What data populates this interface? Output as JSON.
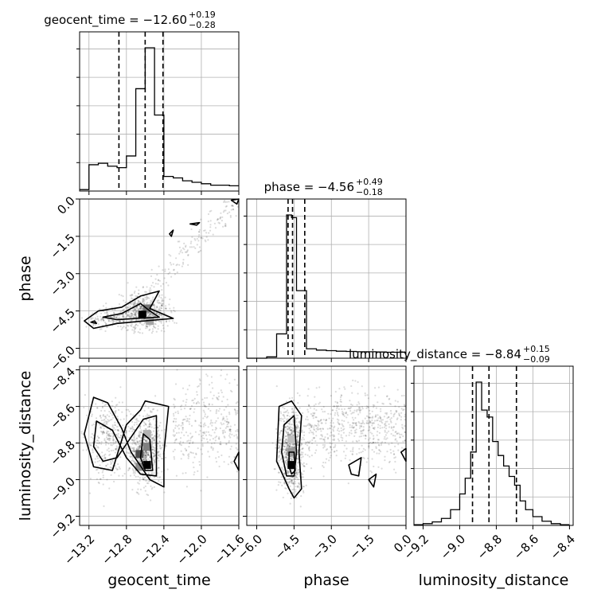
{
  "chart_data": {
    "type": "corner",
    "parameters": [
      "geocent_time",
      "phase",
      "luminosity_distance"
    ],
    "ranges": {
      "geocent_time": [
        -13.3,
        -11.6
      ],
      "phase": [
        -6.4,
        0.0
      ],
      "luminosity_distance": [
        -9.25,
        -8.38
      ]
    },
    "ticks": {
      "geocent_time": [
        -13.2,
        -12.8,
        -12.4,
        -12.0,
        -11.6
      ],
      "phase": [
        -6.0,
        -4.5,
        -3.0,
        -1.5,
        0.0
      ],
      "luminosity_distance": [
        -9.2,
        -9.0,
        -8.8,
        -8.6,
        -8.4
      ]
    },
    "tick_labels": {
      "geocent_time": [
        "−13.2",
        "−12.8",
        "−12.4",
        "−12.0",
        "−11.6"
      ],
      "phase": [
        "−6.0",
        "−4.5",
        "−3.0",
        "−1.5",
        "0.0"
      ],
      "luminosity_distance": [
        "−9.2",
        "−9.0",
        "−8.8",
        "−8.6",
        "−8.4"
      ]
    },
    "titles": [
      {
        "param": "geocent_time",
        "text": "geocent_time = −12.60",
        "plus": "+0.19",
        "minus": "−0.28"
      },
      {
        "param": "phase",
        "text": "phase = −4.56",
        "plus": "+0.49",
        "minus": "−0.18"
      },
      {
        "param": "luminosity_distance",
        "text": "luminosity_distance = −8.84",
        "plus": "+0.15",
        "minus": "−0.09"
      }
    ],
    "quantiles": {
      "geocent_time": [
        -12.88,
        -12.6,
        -12.41
      ],
      "phase": [
        -4.74,
        -4.56,
        -4.07
      ],
      "luminosity_distance": [
        -8.93,
        -8.84,
        -8.69
      ]
    },
    "histograms": {
      "geocent_time": {
        "edges": [
          -13.3,
          -13.2,
          -13.1,
          -13.0,
          -12.9,
          -12.8,
          -12.7,
          -12.6,
          -12.5,
          -12.4,
          -12.3,
          -12.2,
          -12.1,
          -12.0,
          -11.9,
          -11.8,
          -11.7,
          -11.6
        ],
        "counts": [
          0.05,
          0.9,
          0.95,
          0.85,
          0.8,
          1.2,
          3.5,
          4.9,
          2.6,
          0.5,
          0.45,
          0.35,
          0.3,
          0.25,
          0.2,
          0.2,
          0.18
        ]
      },
      "phase": {
        "edges": [
          -6.4,
          -6.0,
          -5.6,
          -5.2,
          -5.0,
          -4.8,
          -4.6,
          -4.4,
          -4.2,
          -4.0,
          -3.6,
          -3.2,
          -2.8,
          -2.4,
          -2.0,
          -1.6,
          -1.2,
          -0.8,
          -0.4,
          0.0
        ],
        "counts": [
          0.0,
          0.0,
          0.05,
          0.9,
          0.9,
          5.3,
          5.2,
          2.5,
          2.5,
          0.35,
          0.3,
          0.28,
          0.26,
          0.25,
          0.24,
          0.24,
          0.23,
          0.22,
          0.22
        ]
      },
      "luminosity_distance": {
        "edges": [
          -9.25,
          -9.2,
          -9.15,
          -9.1,
          -9.05,
          -9.0,
          -8.97,
          -8.94,
          -8.91,
          -8.88,
          -8.85,
          -8.82,
          -8.79,
          -8.76,
          -8.73,
          -8.7,
          -8.67,
          -8.64,
          -8.6,
          -8.55,
          -8.5,
          -8.45,
          -8.4
        ],
        "counts": [
          0.02,
          0.05,
          0.1,
          0.2,
          0.45,
          0.9,
          1.35,
          2.1,
          4.1,
          3.3,
          3.1,
          2.4,
          2.0,
          1.7,
          1.4,
          1.15,
          0.7,
          0.45,
          0.25,
          0.12,
          0.05,
          0.02
        ]
      }
    },
    "samples_description": "2D panels show scattered posterior samples, density contours and gray-scale density peaks",
    "grid": true,
    "note": "Corner plot: diagonal 1D histograms with 16/50/84% quantile lines, lower-triangle 2D density/contours"
  }
}
